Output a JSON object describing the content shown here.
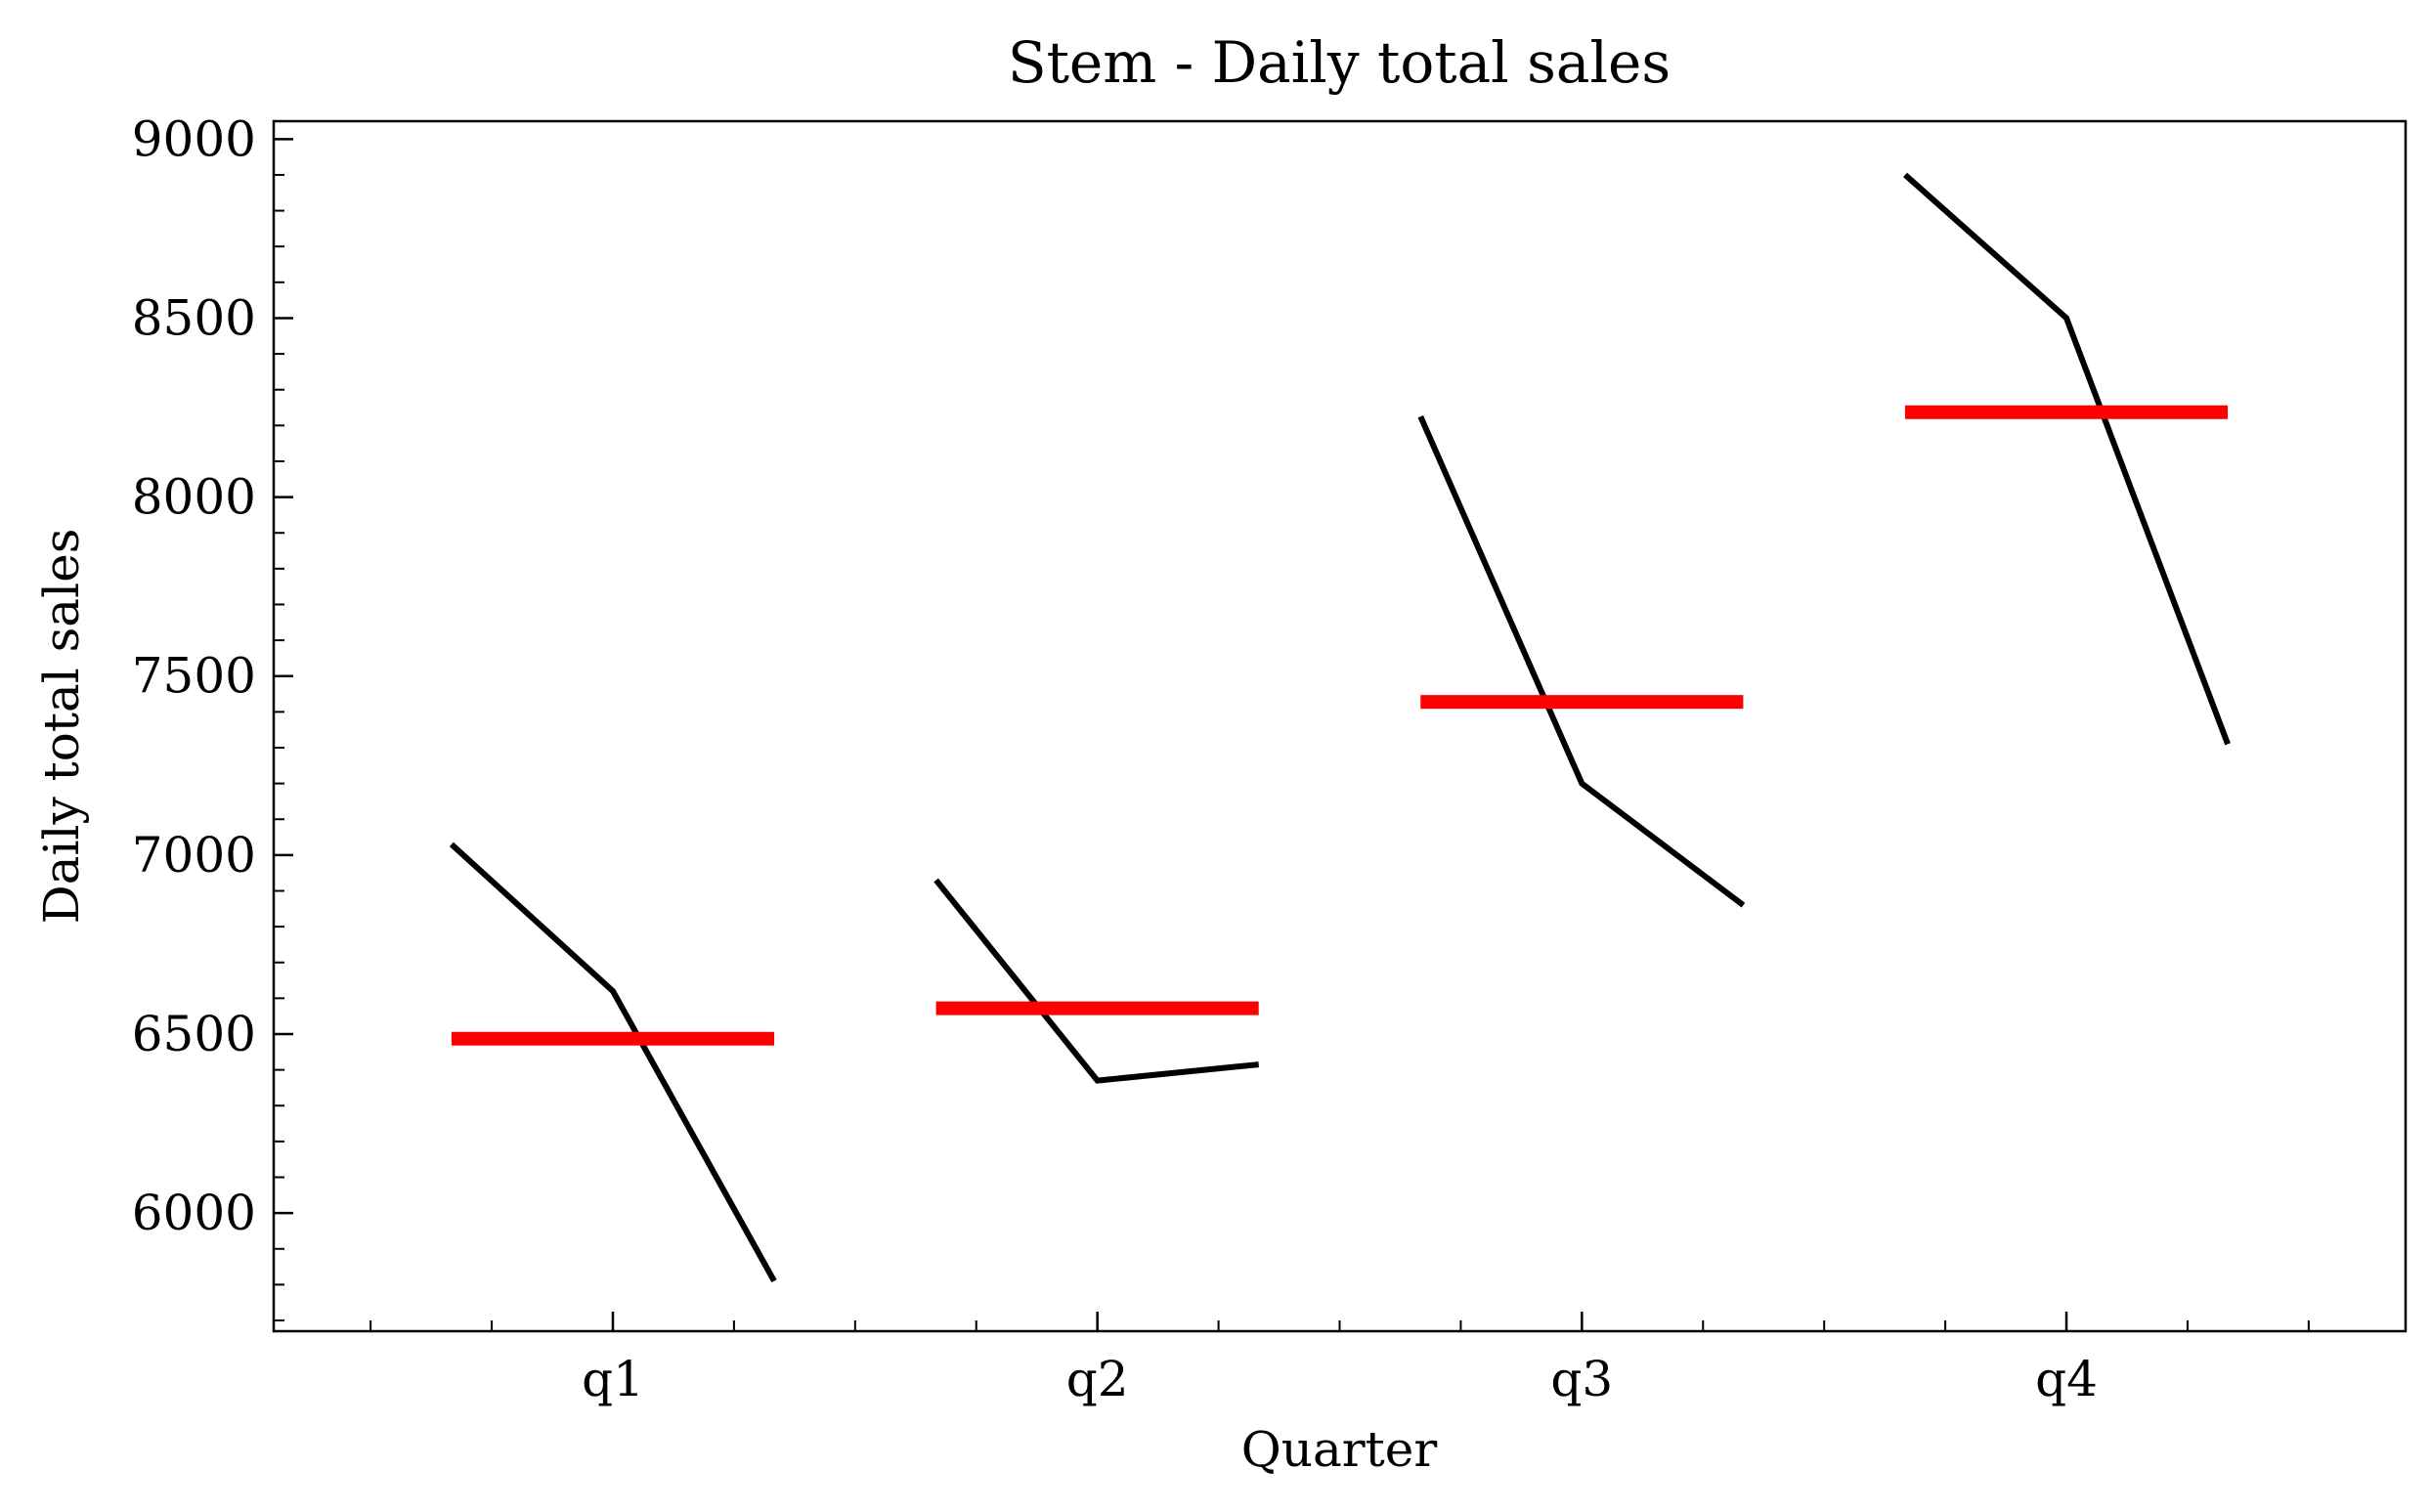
{
  "chart_data": {
    "type": "line",
    "title": "Stem - Daily total sales",
    "xlabel": "Quarter",
    "ylabel": "Daily total sales",
    "categories": [
      "q1",
      "q2",
      "q3",
      "q4"
    ],
    "ylim": [
      5670,
      9050
    ],
    "yticks": [
      6000,
      6500,
      7000,
      7500,
      8000,
      8500,
      9000
    ],
    "grid": false,
    "groups": [
      {
        "category": "q1",
        "values": [
          7030,
          6620,
          5810
        ],
        "mean": 6487
      },
      {
        "category": "q2",
        "values": [
          6930,
          6370,
          6415
        ],
        "mean": 6572
      },
      {
        "category": "q3",
        "values": [
          8225,
          7200,
          6860
        ],
        "mean": 7428
      },
      {
        "category": "q4",
        "values": [
          8900,
          8500,
          7310
        ],
        "mean": 8237
      }
    ],
    "colors": {
      "line": "#000000",
      "mean": "#ff0000"
    }
  }
}
